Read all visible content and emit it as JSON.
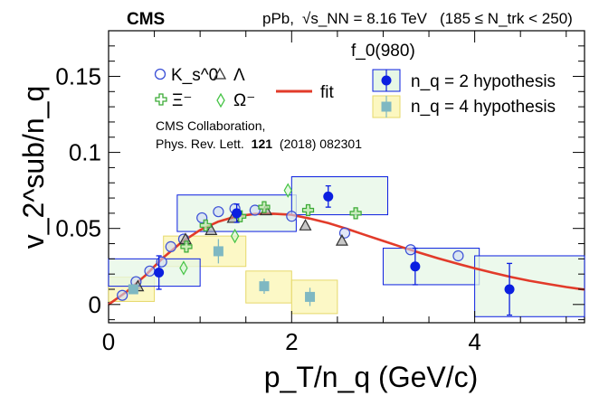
{
  "chart_data": {
    "type": "scatter",
    "experiment_label": "CMS",
    "collision_label": "pPb,",
    "energy_label": "√s_NN = 8.16 TeV",
    "ntrk_label": "(185 ≤ N_trk < 250)",
    "xlabel": "p_T/n_q (GeV/c)",
    "ylabel": "v_2^sub/n_q",
    "xlim": [
      0,
      5.2
    ],
    "ylim": [
      -0.012,
      0.18
    ],
    "x_ticks": [
      0,
      2,
      4
    ],
    "x_tick_labels": [
      "0",
      "2",
      "4"
    ],
    "y_ticks": [
      0,
      0.05,
      0.1,
      0.15
    ],
    "y_tick_labels": [
      "0",
      "0.05",
      "0.1",
      "0.15"
    ],
    "legend": {
      "ks0": "K_s^0",
      "lambda": "Λ",
      "xi": "Ξ⁻",
      "omega": "Ω⁻",
      "fit": "fit",
      "f0_title": "f_0(980)",
      "nq2": "n_q = 2 hypothesis",
      "nq4": "n_q = 4 hypothesis"
    },
    "reference": {
      "line1": "CMS Collaboration,",
      "line2_prefix": "Phys. Rev. Lett.",
      "line2_volume": "121",
      "line2_suffix": "(2018) 082301"
    },
    "colors": {
      "ks0": "#3a4fd6",
      "lambda": "#333333",
      "xi": "#3aaa35",
      "omega": "#47c447",
      "fit": "#e23b2a",
      "nq2": "#0b1fe0",
      "nq4": "#7fb8c2",
      "nq2_box_fill": "#e6f7e6",
      "nq4_box_fill": "#fcf7c0"
    },
    "series": [
      {
        "name": "K_s^0",
        "marker": "circle",
        "x": [
          0.15,
          0.3,
          0.45,
          0.58,
          0.68,
          0.82,
          1.02,
          1.2,
          1.38,
          1.6,
          2.0,
          2.58,
          3.3,
          3.82
        ],
        "y": [
          0.006,
          0.015,
          0.022,
          0.028,
          0.038,
          0.043,
          0.057,
          0.061,
          0.063,
          0.062,
          0.058,
          0.047,
          0.036,
          0.032
        ]
      },
      {
        "name": "Λ",
        "marker": "triangle",
        "x": [
          0.32,
          0.84,
          1.12,
          1.36,
          1.72,
          2.15,
          2.55
        ],
        "y": [
          0.012,
          0.043,
          0.049,
          0.057,
          0.062,
          0.052,
          0.042
        ]
      },
      {
        "name": "Ξ⁻",
        "marker": "cross",
        "x": [
          0.85,
          1.06,
          1.44,
          1.7,
          2.18,
          2.7
        ],
        "y": [
          0.038,
          0.052,
          0.058,
          0.064,
          0.062,
          0.06
        ]
      },
      {
        "name": "Ω⁻",
        "marker": "diamond",
        "x": [
          0.82,
          1.38,
          1.96
        ],
        "y": [
          0.024,
          0.045,
          0.075
        ]
      },
      {
        "name": "f_0(980) n_q = 2",
        "marker": "filled-circle",
        "x": [
          0.55,
          1.4,
          2.4,
          3.35,
          4.38
        ],
        "y": [
          0.021,
          0.06,
          0.071,
          0.025,
          0.01
        ],
        "yerr": [
          0.011,
          0.006,
          0.007,
          0.012,
          0.017
        ],
        "box_x": [
          [
            0,
            1
          ],
          [
            0.75,
            2.05
          ],
          [
            2.0,
            3.05
          ],
          [
            3.0,
            4.05
          ],
          [
            4.0,
            5.2
          ]
        ],
        "box_y": [
          [
            0.012,
            0.03
          ],
          [
            0.048,
            0.072
          ],
          [
            0.059,
            0.084
          ],
          [
            0.013,
            0.037
          ],
          [
            -0.008,
            0.032
          ]
        ]
      },
      {
        "name": "f_0(980) n_q = 4",
        "marker": "filled-square",
        "x": [
          0.27,
          1.2,
          1.7,
          2.2
        ],
        "y": [
          0.01,
          0.035,
          0.012,
          0.005
        ],
        "yerr": [
          0.003,
          0.008,
          0.005,
          0.006
        ],
        "box_x": [
          [
            0,
            0.5
          ],
          [
            0.6,
            1.5
          ],
          [
            1.5,
            2.0
          ],
          [
            2.0,
            2.5
          ]
        ],
        "box_y": [
          [
            0.002,
            0.018
          ],
          [
            0.025,
            0.045
          ],
          [
            0.001,
            0.022
          ],
          [
            -0.006,
            0.016
          ]
        ]
      }
    ],
    "fit": {
      "x": [
        0,
        0.2,
        0.4,
        0.6,
        0.8,
        1.0,
        1.2,
        1.4,
        1.6,
        1.8,
        2.0,
        2.2,
        2.4,
        2.6,
        2.8,
        3.0,
        3.2,
        3.4,
        3.6,
        3.8,
        4.0,
        4.2,
        4.4,
        4.6,
        4.8,
        5.0,
        5.2
      ],
      "y": [
        0.0,
        0.0085,
        0.019,
        0.031,
        0.041,
        0.049,
        0.0545,
        0.058,
        0.0595,
        0.0597,
        0.059,
        0.0565,
        0.0535,
        0.0498,
        0.0458,
        0.0418,
        0.0378,
        0.034,
        0.0304,
        0.027,
        0.0238,
        0.0208,
        0.018,
        0.0156,
        0.0135,
        0.0115,
        0.0098
      ]
    }
  }
}
